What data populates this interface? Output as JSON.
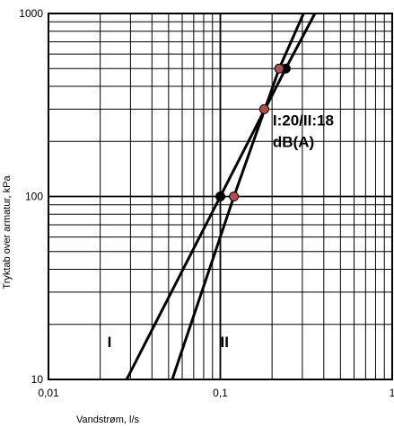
{
  "chart_data": {
    "type": "line",
    "title": "",
    "xlabel": "Vandstrøm, l/s",
    "ylabel": "Tryktab over armatur, kPa",
    "xscale": "log",
    "yscale": "log",
    "xlim": [
      0.01,
      1
    ],
    "ylim": [
      10,
      1000
    ],
    "grid": true,
    "x_tick_labels": [
      "0,01",
      "0,1",
      "1"
    ],
    "x_tick_values": [
      0.01,
      0.1,
      1
    ],
    "y_tick_labels": [
      "10",
      "100",
      "1000"
    ],
    "y_tick_values": [
      10,
      100,
      1000
    ],
    "series": [
      {
        "name": "I",
        "color": "#000000",
        "x": [
          0.0285,
          0.1,
          0.24,
          0.355
        ],
        "y": [
          10,
          100,
          500,
          1000
        ]
      },
      {
        "name": "II",
        "color": "#000000",
        "x": [
          0.0525,
          0.12,
          0.22,
          0.305
        ],
        "y": [
          10,
          100,
          500,
          1000
        ]
      }
    ],
    "markers": [
      {
        "x": 0.1,
        "y": 100,
        "color": "#000000"
      },
      {
        "x": 0.24,
        "y": 500,
        "color": "#000000"
      },
      {
        "x": 0.12,
        "y": 100,
        "color": "#b05050"
      },
      {
        "x": 0.22,
        "y": 500,
        "color": "#b05050"
      },
      {
        "x": 0.18,
        "y": 300,
        "color": "#b05050"
      }
    ],
    "curve_labels": [
      {
        "text": "I",
        "x": 0.022,
        "y": 15
      },
      {
        "text": "II",
        "x": 0.1,
        "y": 15
      }
    ],
    "annotation": {
      "lines": [
        "I:20/II:18",
        "dB(A)"
      ],
      "x": 0.19,
      "y": 300
    }
  }
}
